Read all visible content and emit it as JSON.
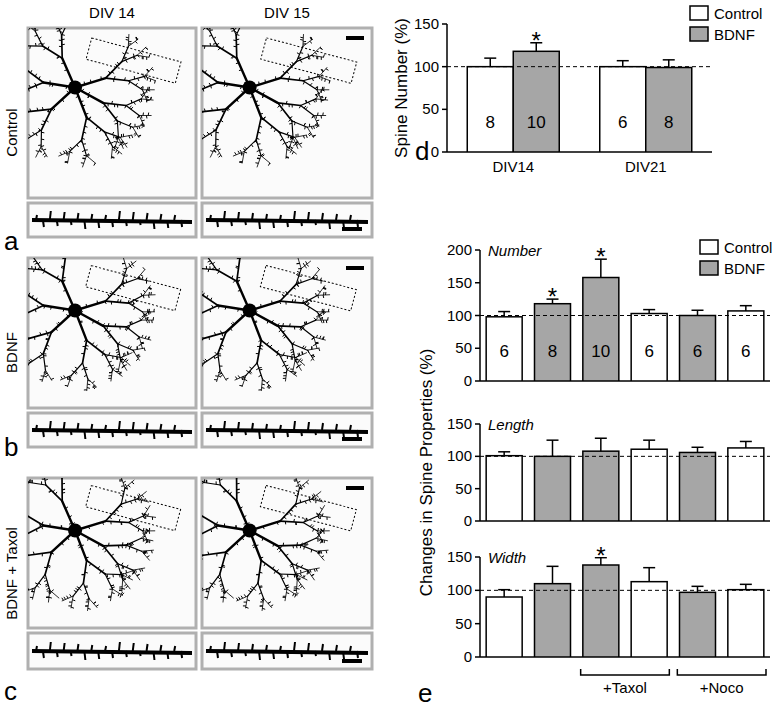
{
  "images": {
    "columns": [
      "DIV 14",
      "DIV 15"
    ],
    "rows": [
      {
        "label": "Control",
        "panel": "a"
      },
      {
        "label": "BDNF",
        "panel": "b"
      },
      {
        "label": "BDNF + Taxol",
        "panel": "c"
      }
    ]
  },
  "chart_data": [
    {
      "type": "bar",
      "panel_label": "d",
      "ylabel": "Spine Number (%)",
      "categories": [
        "DIV14",
        "DIV21"
      ],
      "series": [
        {
          "name": "Control",
          "color": "#ffffff",
          "values": [
            100,
            100
          ],
          "errors": [
            10,
            7
          ],
          "n": [
            8,
            6
          ],
          "significance": [
            null,
            null
          ]
        },
        {
          "name": "BDNF",
          "color": "#a6a6a6",
          "values": [
            118,
            99
          ],
          "errors": [
            10,
            9
          ],
          "n": [
            10,
            8
          ],
          "significance": [
            "*",
            null
          ]
        }
      ],
      "ylim": [
        0,
        150
      ],
      "yticks": [
        0,
        50,
        100,
        150
      ],
      "reference": 100,
      "legend": "top-right"
    },
    {
      "type": "bar",
      "title": "Number",
      "categories": [
        null,
        null,
        null,
        null,
        null,
        null
      ],
      "series": [
        {
          "name": "Control",
          "color": "#ffffff",
          "values": [
            98,
            null,
            null,
            103,
            null,
            107
          ],
          "errors": [
            8,
            null,
            null,
            6,
            null,
            8
          ],
          "n": [
            6,
            null,
            null,
            6,
            null,
            6
          ],
          "significance": [
            null,
            null,
            null,
            null,
            null,
            null
          ]
        },
        {
          "name": "BDNF",
          "color": "#a6a6a6",
          "values": [
            null,
            118,
            158,
            null,
            100,
            null
          ],
          "errors": [
            null,
            7,
            28,
            null,
            8,
            null
          ],
          "n": [
            null,
            8,
            10,
            null,
            6,
            null
          ],
          "significance": [
            null,
            "*",
            "*",
            null,
            null,
            null
          ]
        }
      ],
      "ylim": [
        0,
        200
      ],
      "yticks": [
        0,
        50,
        100,
        150,
        200
      ],
      "reference": 100,
      "legend": "top-right"
    },
    {
      "type": "bar",
      "title": "Length",
      "ylabel": "Changes in Spine Properties (%)",
      "categories": [
        null,
        null,
        null,
        null,
        null,
        null
      ],
      "series": [
        {
          "color": "#ffffff",
          "values": [
            101,
            null,
            null,
            111,
            null,
            113
          ],
          "errors": [
            6,
            null,
            null,
            14,
            null,
            10
          ]
        },
        {
          "color": "#a6a6a6",
          "values": [
            null,
            100,
            108,
            null,
            106,
            null
          ],
          "errors": [
            null,
            25,
            20,
            null,
            8,
            null
          ]
        }
      ],
      "ylim": [
        0,
        150
      ],
      "yticks": [
        0,
        50,
        100,
        150
      ],
      "reference": 100
    },
    {
      "type": "bar",
      "title": "Width",
      "panel_label": "e",
      "categories": [
        null,
        null,
        null,
        null,
        null,
        null
      ],
      "series": [
        {
          "color": "#ffffff",
          "values": [
            90,
            null,
            null,
            113,
            null,
            101
          ],
          "errors": [
            11,
            null,
            null,
            21,
            null,
            8
          ],
          "significance": [
            null,
            null,
            null,
            null,
            null,
            null
          ]
        },
        {
          "color": "#a6a6a6",
          "values": [
            null,
            110,
            138,
            null,
            97,
            null
          ],
          "errors": [
            null,
            26,
            11,
            null,
            9,
            null
          ],
          "significance": [
            null,
            null,
            "*",
            null,
            null,
            null
          ]
        }
      ],
      "ylim": [
        0,
        150
      ],
      "yticks": [
        0,
        50,
        100,
        150
      ],
      "reference": 100,
      "category_groups": [
        {
          "label": "+Taxol",
          "categories": [
            2,
            3
          ]
        },
        {
          "label": "+Noco",
          "categories": [
            4,
            5
          ]
        }
      ]
    }
  ]
}
